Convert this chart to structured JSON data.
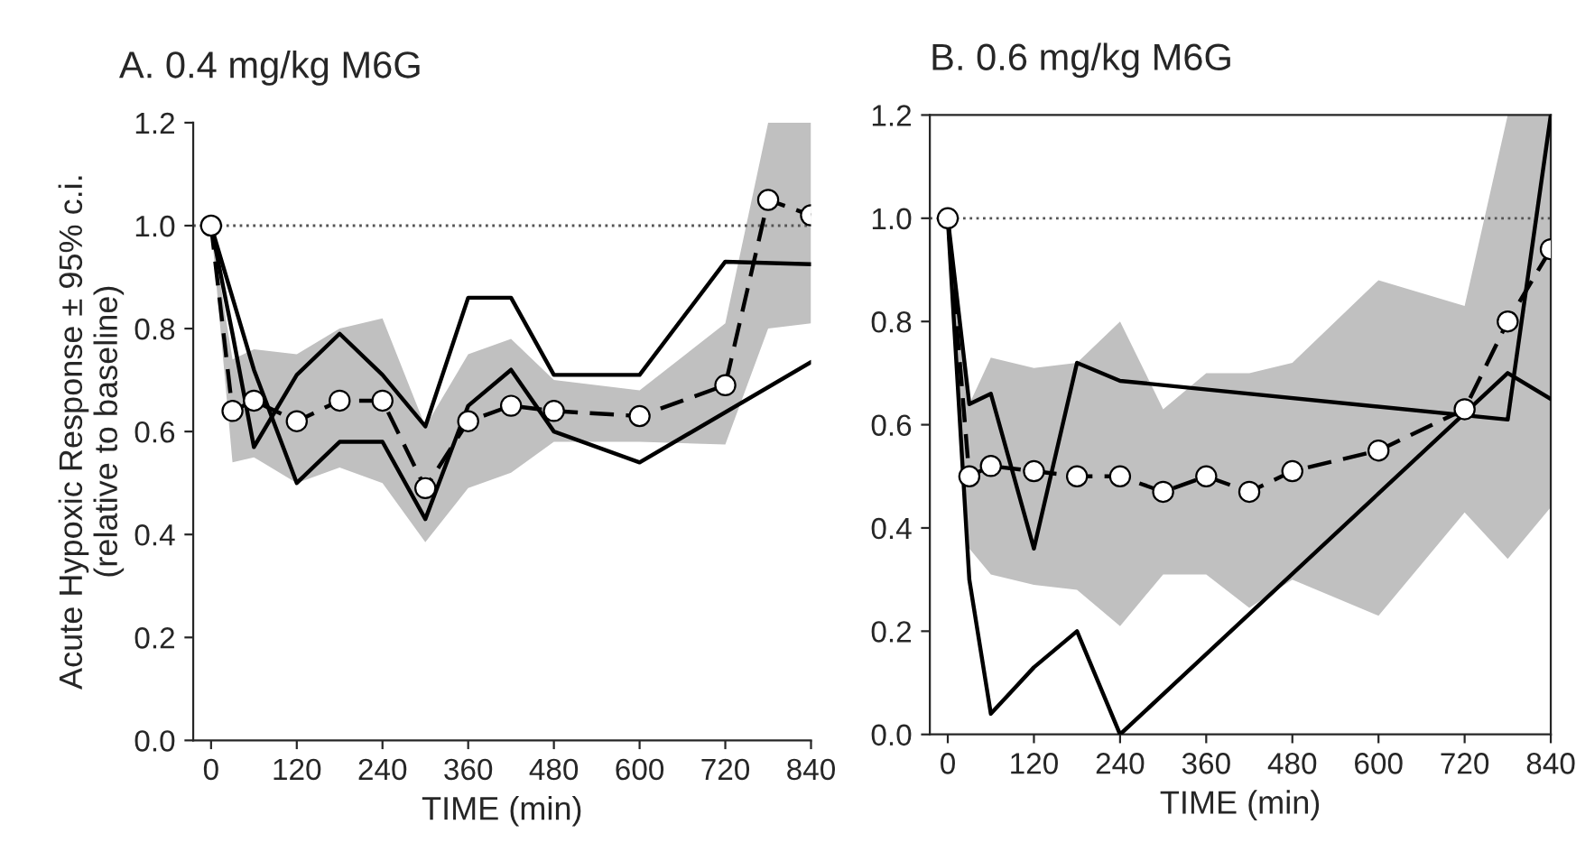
{
  "chart_data": [
    {
      "type": "line",
      "title": "A. 0.4 mg/kg M6G",
      "xlabel": "TIME (min)",
      "ylabel": "Acute Hypoxic Response ± 95% c.i.\n(relative to baseline)",
      "xlim": [
        -25,
        840
      ],
      "xticks": [
        0,
        120,
        240,
        360,
        480,
        600,
        720,
        840
      ],
      "ylim": [
        0,
        1.2
      ],
      "yticks": [
        {
          "value": 0,
          "label": "0.0"
        },
        {
          "value": 0.2,
          "label": "0.2"
        },
        {
          "value": 0.4,
          "label": "0.4"
        },
        {
          "value": 0.6,
          "label": "0.6"
        },
        {
          "value": 0.8,
          "label": "0.8"
        },
        {
          "value": 1,
          "label": "1.0"
        },
        {
          "value": 1.2,
          "label": "1.2"
        }
      ],
      "grid": false,
      "legend": false,
      "ref_lines": [
        {
          "axis": "y",
          "value": 1.0,
          "line_style": "dotted",
          "color": "#555555"
        }
      ],
      "series": [
        {
          "color": "#000000",
          "line_style": "solid",
          "marker": "none",
          "x": [
            0,
            30,
            60,
            120,
            180,
            240,
            300,
            360,
            420,
            480,
            600,
            720,
            840
          ],
          "values": [
            1.0,
            0.79,
            0.57,
            0.71,
            0.79,
            0.71,
            0.61,
            0.86,
            0.86,
            0.71,
            0.71,
            0.93,
            0.925
          ]
        },
        {
          "color": "#000000",
          "line_style": "solid",
          "marker": "none",
          "x": [
            0,
            60,
            120,
            180,
            240,
            300,
            360,
            420,
            480,
            600,
            840
          ],
          "values": [
            1.0,
            0.72,
            0.5,
            0.58,
            0.58,
            0.43,
            0.65,
            0.72,
            0.6,
            0.54,
            0.735
          ]
        },
        {
          "color": "#000000",
          "line_style": "dashed",
          "marker": "circle",
          "x": [
            0,
            30,
            60,
            120,
            180,
            240,
            300,
            360,
            420,
            480,
            600,
            720,
            780,
            840
          ],
          "values": [
            1.0,
            0.64,
            0.66,
            0.62,
            0.66,
            0.66,
            0.49,
            0.62,
            0.65,
            0.64,
            0.63,
            0.69,
            1.05,
            1.02
          ],
          "lower": [
            1.0,
            0.54,
            0.55,
            0.5,
            0.53,
            0.5,
            0.385,
            0.49,
            0.52,
            0.58,
            0.58,
            0.575,
            0.8,
            0.81
          ],
          "upper": [
            1.0,
            0.74,
            0.76,
            0.75,
            0.8,
            0.82,
            0.61,
            0.75,
            0.78,
            0.7,
            0.68,
            0.81,
            1.2,
            1.2
          ]
        }
      ]
    },
    {
      "type": "line",
      "title": "B. 0.6 mg/kg M6G",
      "xlabel": "TIME (min)",
      "xlim": [
        -25,
        840
      ],
      "xticks": [
        0,
        120,
        240,
        360,
        480,
        600,
        720,
        840
      ],
      "ylim": [
        0,
        1.2
      ],
      "yticks": [
        {
          "value": 0,
          "label": "0.0"
        },
        {
          "value": 0.2,
          "label": "0.2"
        },
        {
          "value": 0.4,
          "label": "0.4"
        },
        {
          "value": 0.6,
          "label": "0.6"
        },
        {
          "value": 0.8,
          "label": "0.8"
        },
        {
          "value": 1,
          "label": "1.0"
        },
        {
          "value": 1.2,
          "label": "1.2"
        }
      ],
      "grid": false,
      "legend": false,
      "ref_lines": [
        {
          "axis": "y",
          "value": 1.0,
          "line_style": "dotted",
          "color": "#555555"
        }
      ],
      "series": [
        {
          "color": "#000000",
          "line_style": "solid",
          "marker": "none",
          "x": [
            0,
            30,
            60,
            120,
            180,
            240,
            780,
            840
          ],
          "values": [
            1.0,
            0.64,
            0.66,
            0.36,
            0.72,
            0.685,
            0.61,
            1.2
          ]
        },
        {
          "color": "#000000",
          "line_style": "solid",
          "marker": "none",
          "x": [
            0,
            30,
            60,
            120,
            180,
            240,
            780,
            840
          ],
          "values": [
            1.0,
            0.3,
            0.04,
            0.13,
            0.2,
            0.0,
            0.7,
            0.65
          ]
        },
        {
          "color": "#000000",
          "line_style": "dashed",
          "marker": "circle",
          "x": [
            0,
            30,
            60,
            120,
            180,
            240,
            300,
            360,
            420,
            480,
            600,
            720,
            780,
            840
          ],
          "values": [
            1.0,
            0.5,
            0.52,
            0.51,
            0.5,
            0.5,
            0.47,
            0.5,
            0.47,
            0.51,
            0.55,
            0.63,
            0.8,
            0.94
          ],
          "lower": [
            1.0,
            0.36,
            0.31,
            0.29,
            0.28,
            0.21,
            0.31,
            0.31,
            0.245,
            0.3,
            0.23,
            0.43,
            0.34,
            0.44
          ],
          "upper": [
            1.0,
            0.64,
            0.73,
            0.71,
            0.72,
            0.8,
            0.63,
            0.7,
            0.7,
            0.72,
            0.88,
            0.83,
            1.2,
            1.2
          ]
        }
      ]
    }
  ]
}
